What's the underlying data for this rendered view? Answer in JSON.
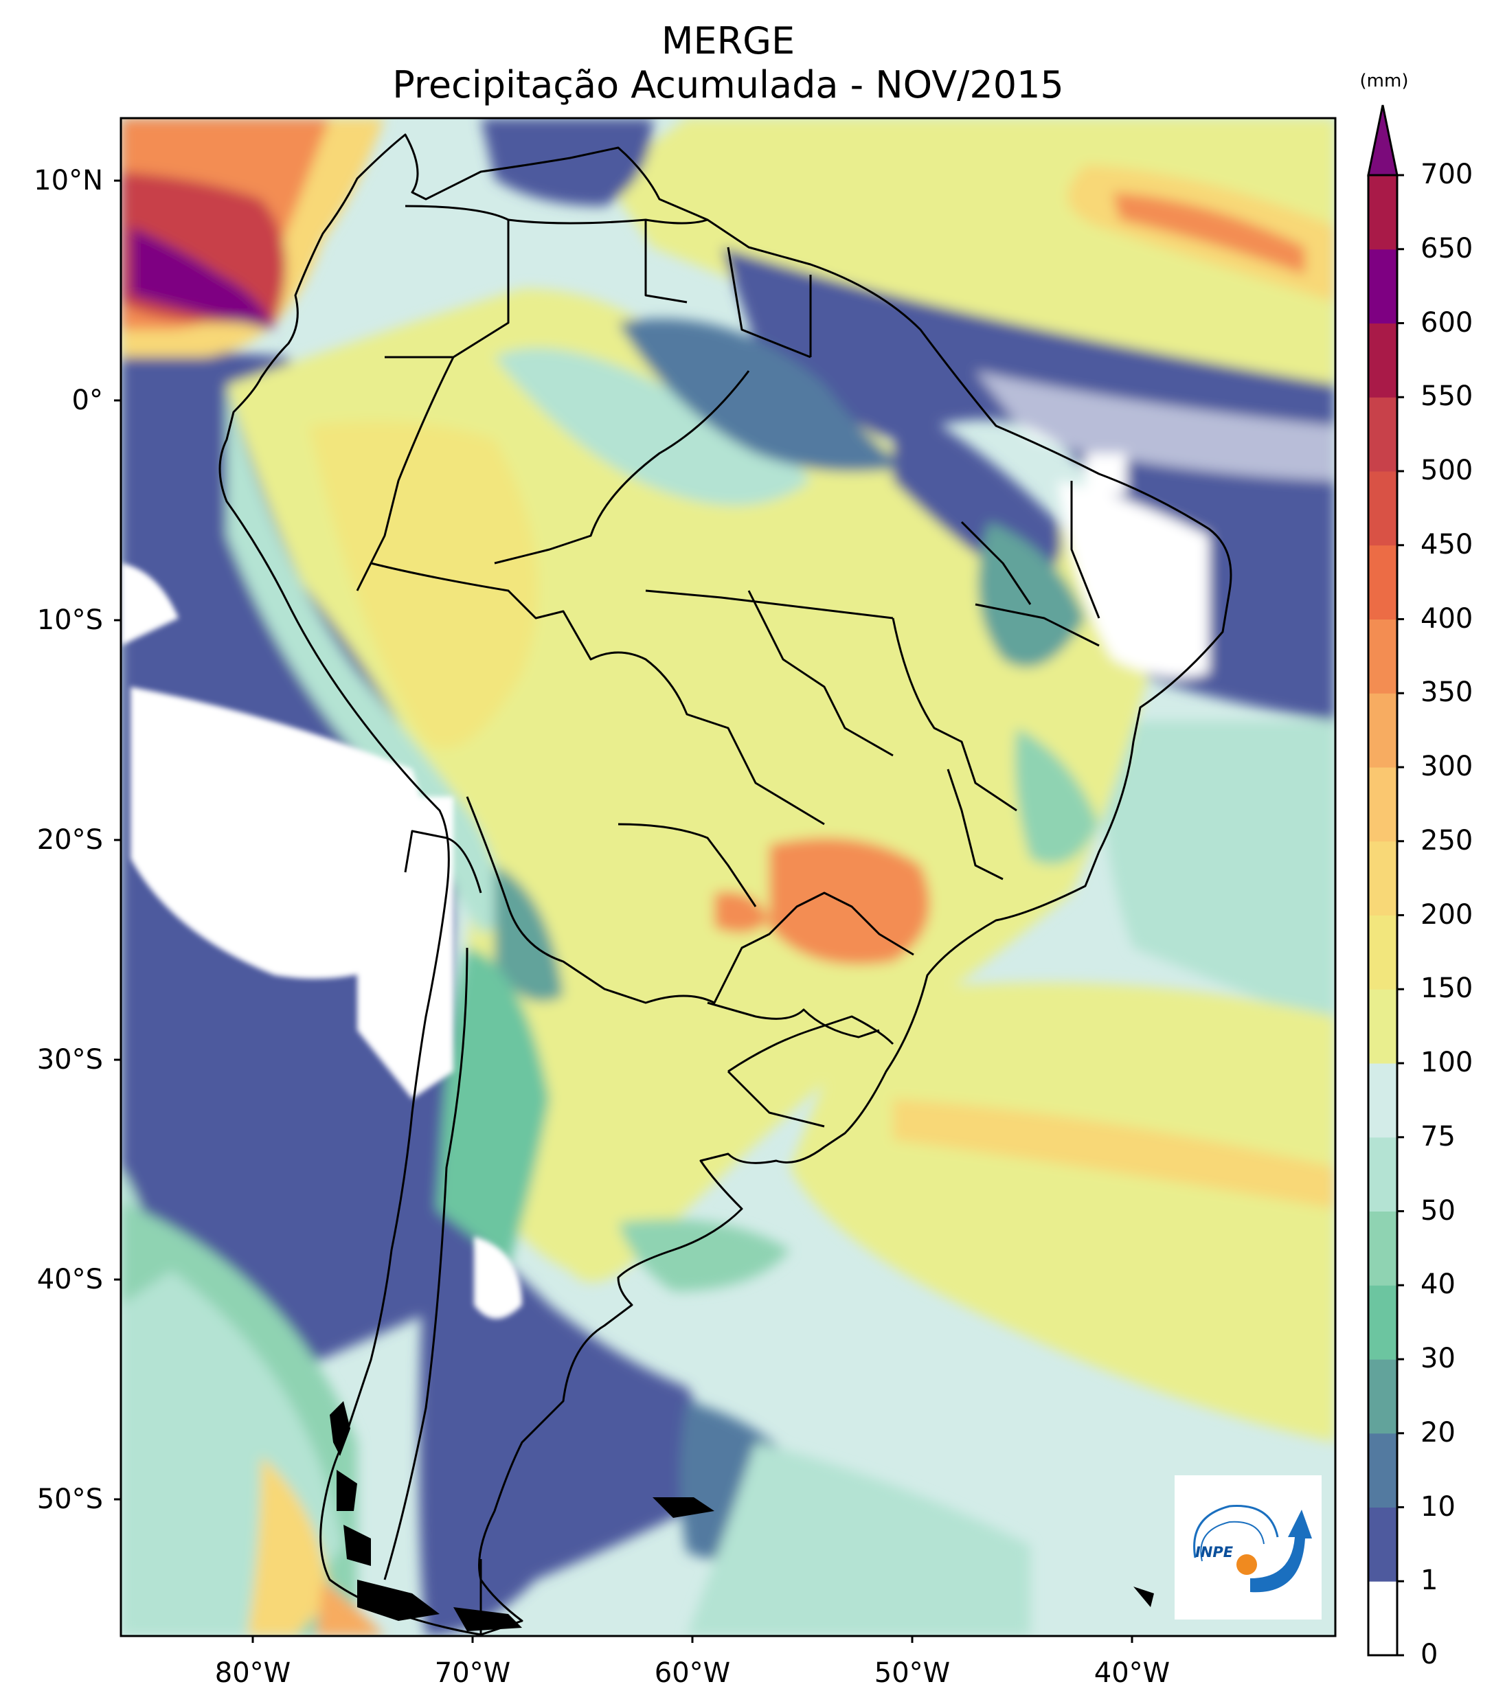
{
  "title": "MERGE",
  "subtitle": "Precipitação Acumulada - NOV/2015",
  "colorbar": {
    "unit": "(mm)",
    "levels": [
      "0",
      "1",
      "10",
      "20",
      "30",
      "40",
      "50",
      "75",
      "100",
      "150",
      "200",
      "250",
      "300",
      "350",
      "400",
      "450",
      "500",
      "550",
      "600",
      "650",
      "700"
    ],
    "colors": [
      "#ffffff",
      "#4e5a9e",
      "#537aa0",
      "#62a39b",
      "#6cc5a0",
      "#8fd3b2",
      "#b4e3d3",
      "#d3ece8",
      "#e9ee8e",
      "#f2e67d",
      "#f8d877",
      "#fac770",
      "#f7ac61",
      "#f38d52",
      "#ec6c45",
      "#d95245",
      "#c8414a",
      "#a91a48",
      "#7e0082"
    ],
    "extend_color": "#7b0a7b"
  },
  "lat_labels": [
    "10°N",
    "0°",
    "10°S",
    "20°S",
    "30°S",
    "40°S",
    "50°S"
  ],
  "lon_labels": [
    "80°W",
    "70°W",
    "60°W",
    "50°W",
    "40°W"
  ],
  "logo": {
    "text": "INPE",
    "circle_color": "#f08a1f",
    "arrow_color": "#1a6fbf"
  }
}
